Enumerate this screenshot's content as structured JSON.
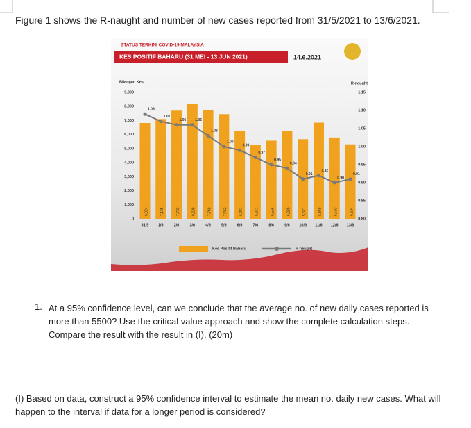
{
  "intro": "Figure 1 shows the R-naught and number of new cases reported from 31/5/2021 to 13/6/2021.",
  "chart_data": {
    "type": "bar",
    "source_title": "STATUS TERKINI COVID-19 MALAYSIA",
    "title": "KES POSITIF BAHARU (31 MEI - 13 JUN 2021)",
    "date": "14.6.2021",
    "ylabel": "Bilangan Kes",
    "y2label": "R-naught",
    "categories": [
      "31/5",
      "1/6",
      "2/6",
      "3/6",
      "4/6",
      "5/6",
      "6/6",
      "7/6",
      "8/6",
      "9/6",
      "10/6",
      "11/6",
      "12/6",
      "13/6"
    ],
    "series": [
      {
        "name": "Kes Positif Baharu",
        "type": "bar",
        "color": "#f0a21f",
        "values": [
          6824,
          7105,
          7703,
          8209,
          7748,
          7452,
          6241,
          5271,
          5566,
          6239,
          5671,
          6849,
          5793,
          5304
        ],
        "value_labels": [
          "6,824",
          "7,105",
          "7,703",
          "8,209",
          "7,748",
          "7,452",
          "6,241",
          "5,271",
          "5,566",
          "6,239",
          "5,671",
          "6,849",
          "5,793",
          "5,304"
        ]
      },
      {
        "name": "R-naught",
        "type": "line",
        "axis": "y2",
        "color": "#7a7a7a",
        "values": [
          1.09,
          1.07,
          1.06,
          1.06,
          1.03,
          1.0,
          0.99,
          0.97,
          0.95,
          0.94,
          0.91,
          0.92,
          0.9,
          0.91
        ],
        "value_labels": [
          "1.09",
          "1.07",
          "1.06",
          "1.06",
          "1.03",
          "1.00",
          "0.99",
          "0.97",
          "0.95",
          "0.94",
          "0.91",
          "0.92",
          "0.90",
          "0.91"
        ]
      }
    ],
    "ylim": [
      0,
      9000
    ],
    "yticks": [
      0,
      {
        "value": 1000,
        "label": "1,000"
      },
      {
        "value": 2000,
        "label": "2,000"
      },
      {
        "value": 3000,
        "label": "3,000"
      },
      {
        "value": 4000,
        "label": "4,000"
      },
      {
        "value": 5000,
        "label": "5,000"
      },
      {
        "value": 6000,
        "label": "6,000"
      },
      {
        "value": 7000,
        "label": "7,000"
      },
      {
        "value": 8000,
        "label": "8,000"
      },
      {
        "value": 9000,
        "label": "9,000"
      }
    ],
    "y2lim": [
      0.8,
      1.15
    ],
    "y2ticks": [
      {
        "value": 0.8,
        "label": "0.80"
      },
      0.85,
      {
        "value": 0.9,
        "label": "0.90"
      },
      0.95,
      {
        "value": 1,
        "label": "1.00"
      },
      1.05,
      {
        "value": 1.1,
        "label": "1.10"
      },
      1.15
    ]
  },
  "questions": [
    {
      "number": "1.",
      "text": "At a 95% confidence level, can we conclude that the average no. of new daily cases reported is more than 5500? Use the critical value approach and show the complete calculation steps. Compare the result with the result in (I). (20m)"
    }
  ],
  "part": "(I) Based on data, construct a 95% confidence interval to estimate the mean no. daily new cases. What will happen to the interval if data for a longer period is considered?"
}
